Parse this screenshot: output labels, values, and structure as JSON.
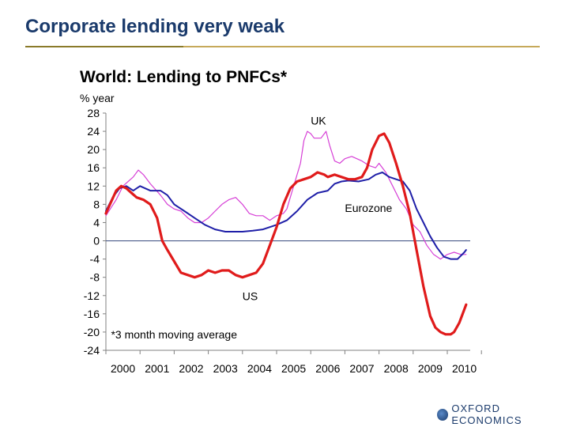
{
  "slide": {
    "title": "Corporate lending very weak"
  },
  "logo": {
    "text": "OXFORD ECONOMICS"
  },
  "colors": {
    "title": "#1a3a6b",
    "uk": "#d63fd6",
    "eurozone": "#1f1fa8",
    "us": "#e01b1b",
    "zero_line": "#4a5a8a",
    "rule": "#c6a95a"
  },
  "chart_data": {
    "type": "line",
    "title": "World: Lending to PNFCs*",
    "ylabel": "% year",
    "xlabel": "",
    "ylim": [
      -24,
      28
    ],
    "xlim": [
      2000,
      2011
    ],
    "yticks": [
      28,
      24,
      20,
      16,
      12,
      8,
      4,
      0,
      -4,
      -8,
      -12,
      -16,
      -20,
      -24
    ],
    "xticks": [
      "2000",
      "2001",
      "2002",
      "2003",
      "2004",
      "2005",
      "2006",
      "2007",
      "2008",
      "2009",
      "2010"
    ],
    "annotation": "*3 month moving average",
    "grid": false,
    "series": [
      {
        "name": "UK",
        "color": "#d63fd6",
        "points": [
          [
            2000.0,
            5.5
          ],
          [
            2000.3,
            9
          ],
          [
            2000.5,
            12
          ],
          [
            2000.8,
            14
          ],
          [
            2000.95,
            15.5
          ],
          [
            2001.1,
            14.5
          ],
          [
            2001.3,
            12.5
          ],
          [
            2001.6,
            10
          ],
          [
            2001.8,
            8
          ],
          [
            2002.0,
            7
          ],
          [
            2002.2,
            6.5
          ],
          [
            2002.4,
            5
          ],
          [
            2002.6,
            4
          ],
          [
            2002.8,
            4
          ],
          [
            2003.0,
            5
          ],
          [
            2003.2,
            6.5
          ],
          [
            2003.4,
            8
          ],
          [
            2003.6,
            9
          ],
          [
            2003.8,
            9.5
          ],
          [
            2004.0,
            8
          ],
          [
            2004.2,
            6
          ],
          [
            2004.4,
            5.5
          ],
          [
            2004.6,
            5.5
          ],
          [
            2004.8,
            4.5
          ],
          [
            2005.0,
            5.5
          ],
          [
            2005.2,
            6
          ],
          [
            2005.3,
            7
          ],
          [
            2005.5,
            12
          ],
          [
            2005.7,
            17
          ],
          [
            2005.8,
            22
          ],
          [
            2005.9,
            24
          ],
          [
            2006.0,
            23.5
          ],
          [
            2006.1,
            22.5
          ],
          [
            2006.3,
            22.5
          ],
          [
            2006.45,
            24
          ],
          [
            2006.55,
            21
          ],
          [
            2006.7,
            17.5
          ],
          [
            2006.85,
            17
          ],
          [
            2007.0,
            18
          ],
          [
            2007.2,
            18.5
          ],
          [
            2007.5,
            17.5
          ],
          [
            2007.7,
            16.5
          ],
          [
            2007.9,
            16
          ],
          [
            2008.0,
            17
          ],
          [
            2008.2,
            15
          ],
          [
            2008.4,
            12
          ],
          [
            2008.6,
            9
          ],
          [
            2008.8,
            7
          ],
          [
            2009.0,
            3.5
          ],
          [
            2009.2,
            2
          ],
          [
            2009.4,
            -1
          ],
          [
            2009.6,
            -3
          ],
          [
            2009.8,
            -4
          ],
          [
            2010.0,
            -3
          ],
          [
            2010.2,
            -2.5
          ],
          [
            2010.4,
            -3
          ],
          [
            2010.55,
            -3
          ]
        ]
      },
      {
        "name": "Eurozone",
        "color": "#1f1fa8",
        "points": [
          [
            2000.0,
            6.5
          ],
          [
            2000.2,
            9.5
          ],
          [
            2000.4,
            11.5
          ],
          [
            2000.6,
            12
          ],
          [
            2000.8,
            11
          ],
          [
            2001.0,
            12
          ],
          [
            2001.3,
            11
          ],
          [
            2001.6,
            11
          ],
          [
            2001.8,
            10
          ],
          [
            2002.0,
            8
          ],
          [
            2002.3,
            6.5
          ],
          [
            2002.6,
            5
          ],
          [
            2002.9,
            3.5
          ],
          [
            2003.2,
            2.5
          ],
          [
            2003.5,
            2
          ],
          [
            2003.8,
            2
          ],
          [
            2004.0,
            2
          ],
          [
            2004.3,
            2.2
          ],
          [
            2004.6,
            2.5
          ],
          [
            2004.8,
            3
          ],
          [
            2005.0,
            3.5
          ],
          [
            2005.3,
            4.5
          ],
          [
            2005.6,
            6.5
          ],
          [
            2005.9,
            9
          ],
          [
            2006.2,
            10.5
          ],
          [
            2006.5,
            11
          ],
          [
            2006.7,
            12.5
          ],
          [
            2006.9,
            13
          ],
          [
            2007.1,
            13.2
          ],
          [
            2007.4,
            13
          ],
          [
            2007.7,
            13.5
          ],
          [
            2007.9,
            14.5
          ],
          [
            2008.1,
            15
          ],
          [
            2008.3,
            14
          ],
          [
            2008.5,
            13.5
          ],
          [
            2008.7,
            13
          ],
          [
            2008.9,
            11
          ],
          [
            2009.1,
            7
          ],
          [
            2009.3,
            4
          ],
          [
            2009.5,
            1
          ],
          [
            2009.7,
            -1.5
          ],
          [
            2009.9,
            -3.5
          ],
          [
            2010.1,
            -4
          ],
          [
            2010.3,
            -4
          ],
          [
            2010.5,
            -2.5
          ],
          [
            2010.55,
            -2
          ]
        ]
      },
      {
        "name": "US",
        "color": "#e01b1b",
        "points": [
          [
            2000.0,
            6
          ],
          [
            2000.15,
            8.5
          ],
          [
            2000.3,
            11
          ],
          [
            2000.45,
            12
          ],
          [
            2000.6,
            11.5
          ],
          [
            2000.75,
            10.5
          ],
          [
            2000.9,
            9.5
          ],
          [
            2001.1,
            9
          ],
          [
            2001.3,
            8
          ],
          [
            2001.5,
            5
          ],
          [
            2001.65,
            0
          ],
          [
            2001.8,
            -2
          ],
          [
            2002.0,
            -4.5
          ],
          [
            2002.2,
            -7
          ],
          [
            2002.4,
            -7.5
          ],
          [
            2002.6,
            -8
          ],
          [
            2002.8,
            -7.5
          ],
          [
            2003.0,
            -6.5
          ],
          [
            2003.2,
            -7
          ],
          [
            2003.4,
            -6.5
          ],
          [
            2003.6,
            -6.5
          ],
          [
            2003.8,
            -7.5
          ],
          [
            2004.0,
            -8
          ],
          [
            2004.2,
            -7.5
          ],
          [
            2004.4,
            -7
          ],
          [
            2004.6,
            -5
          ],
          [
            2004.8,
            -1
          ],
          [
            2005.0,
            3
          ],
          [
            2005.2,
            8
          ],
          [
            2005.4,
            11.5
          ],
          [
            2005.6,
            13
          ],
          [
            2005.8,
            13.5
          ],
          [
            2006.0,
            14
          ],
          [
            2006.2,
            15
          ],
          [
            2006.4,
            14.5
          ],
          [
            2006.5,
            14
          ],
          [
            2006.7,
            14.5
          ],
          [
            2006.9,
            14
          ],
          [
            2007.1,
            13.5
          ],
          [
            2007.3,
            13.5
          ],
          [
            2007.5,
            14
          ],
          [
            2007.65,
            16
          ],
          [
            2007.8,
            20
          ],
          [
            2008.0,
            23
          ],
          [
            2008.15,
            23.5
          ],
          [
            2008.3,
            21.5
          ],
          [
            2008.5,
            17
          ],
          [
            2008.7,
            12
          ],
          [
            2008.9,
            6
          ],
          [
            2009.1,
            -2
          ],
          [
            2009.3,
            -10
          ],
          [
            2009.5,
            -16.5
          ],
          [
            2009.65,
            -19
          ],
          [
            2009.8,
            -20
          ],
          [
            2009.95,
            -20.5
          ],
          [
            2010.1,
            -20.5
          ],
          [
            2010.2,
            -20
          ],
          [
            2010.35,
            -18
          ],
          [
            2010.55,
            -14
          ]
        ]
      }
    ],
    "series_labels": [
      {
        "name": "UK",
        "x": 2006.0,
        "y": 25.5
      },
      {
        "name": "Eurozone",
        "x": 2007.0,
        "y": 6.3
      },
      {
        "name": "US",
        "x": 2004.0,
        "y": -13
      }
    ],
    "annotation_pos": {
      "x": 2000.15,
      "y": -20.5
    }
  }
}
